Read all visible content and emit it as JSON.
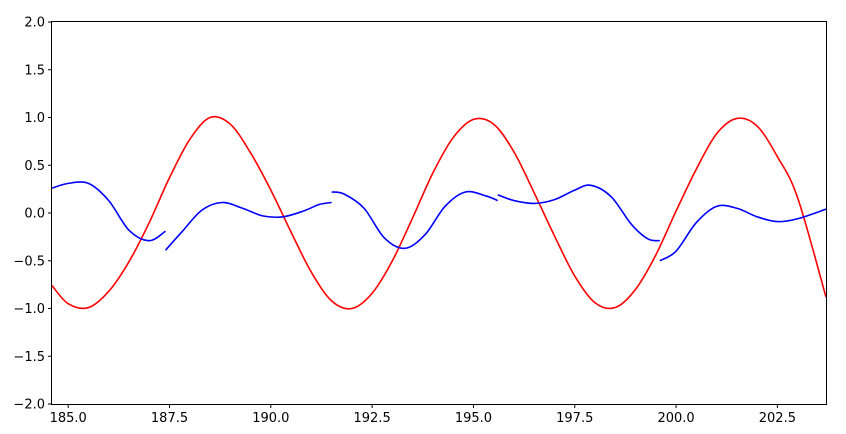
{
  "chart_data": {
    "type": "line",
    "title": "",
    "xlabel": "",
    "ylabel": "",
    "xlim": [
      184.6,
      203.7
    ],
    "ylim": [
      -2.0,
      2.0
    ],
    "grid": false,
    "x_ticks": [
      185.0,
      187.5,
      190.0,
      192.5,
      195.0,
      197.5,
      200.0,
      202.5
    ],
    "x_tick_labels": [
      "185.0",
      "187.5",
      "190.0",
      "192.5",
      "195.0",
      "197.5",
      "200.0",
      "202.5"
    ],
    "y_ticks": [
      -2.0,
      -1.5,
      -1.0,
      -0.5,
      0.0,
      0.5,
      1.0,
      1.5,
      2.0
    ],
    "y_tick_labels": [
      "−2.0",
      "−1.5",
      "−1.0",
      "−0.5",
      "0.0",
      "0.5",
      "1.0",
      "1.5",
      "2.0"
    ],
    "series": [
      {
        "color": "#ff0000",
        "segments": [
          {
            "x": [
              184.6,
              185.0,
              185.5,
              186.0,
              186.5,
              187.0,
              187.5,
              188.0,
              188.5,
              189.0,
              189.5,
              190.0,
              190.5,
              191.0,
              191.5,
              192.0,
              192.5,
              193.0,
              193.5,
              194.0,
              194.5,
              195.0,
              195.5,
              196.0,
              196.5,
              197.0,
              197.5,
              198.0,
              198.5,
              199.0,
              199.5,
              200.0,
              200.5,
              201.0,
              201.5,
              202.0,
              202.5,
              203.0,
              203.7
            ],
            "y": [
              -0.76,
              -0.95,
              -0.99,
              -0.82,
              -0.51,
              -0.1,
              0.37,
              0.77,
              1.0,
              0.93,
              0.63,
              0.24,
              -0.2,
              -0.62,
              -0.92,
              -1.0,
              -0.84,
              -0.5,
              -0.05,
              0.42,
              0.79,
              0.98,
              0.93,
              0.64,
              0.21,
              -0.24,
              -0.66,
              -0.94,
              -0.99,
              -0.8,
              -0.44,
              0.02,
              0.46,
              0.83,
              0.99,
              0.91,
              0.59,
              0.16,
              -0.88
            ]
          }
        ]
      },
      {
        "color": "#0000ff",
        "segments": [
          {
            "x": [
              184.6,
              185.0,
              185.5,
              186.0,
              186.5,
              187.0,
              187.4
            ],
            "y": [
              0.26,
              0.31,
              0.31,
              0.13,
              -0.18,
              -0.29,
              -0.19
            ]
          },
          {
            "x": [
              187.4,
              187.8,
              188.3,
              188.8,
              189.3,
              189.8,
              190.3,
              190.8,
              191.2,
              191.5
            ],
            "y": [
              -0.39,
              -0.2,
              0.03,
              0.11,
              0.05,
              -0.03,
              -0.04,
              0.02,
              0.09,
              0.11
            ]
          },
          {
            "x": [
              191.5,
              191.8,
              192.3,
              192.8,
              193.3,
              193.8,
              194.3,
              194.8,
              195.3,
              195.6
            ],
            "y": [
              0.22,
              0.2,
              0.05,
              -0.26,
              -0.37,
              -0.23,
              0.07,
              0.22,
              0.18,
              0.13
            ]
          },
          {
            "x": [
              195.6,
              196.0,
              196.5,
              197.0,
              197.5,
              197.9,
              198.4,
              198.9,
              199.3,
              199.6
            ],
            "y": [
              0.19,
              0.13,
              0.1,
              0.14,
              0.24,
              0.29,
              0.17,
              -0.12,
              -0.27,
              -0.29
            ]
          },
          {
            "x": [
              199.6,
              200.0,
              200.5,
              201.0,
              201.5,
              202.0,
              202.5,
              203.0,
              203.7
            ],
            "y": [
              -0.5,
              -0.4,
              -0.1,
              0.07,
              0.05,
              -0.04,
              -0.09,
              -0.06,
              0.04
            ]
          }
        ]
      }
    ]
  }
}
